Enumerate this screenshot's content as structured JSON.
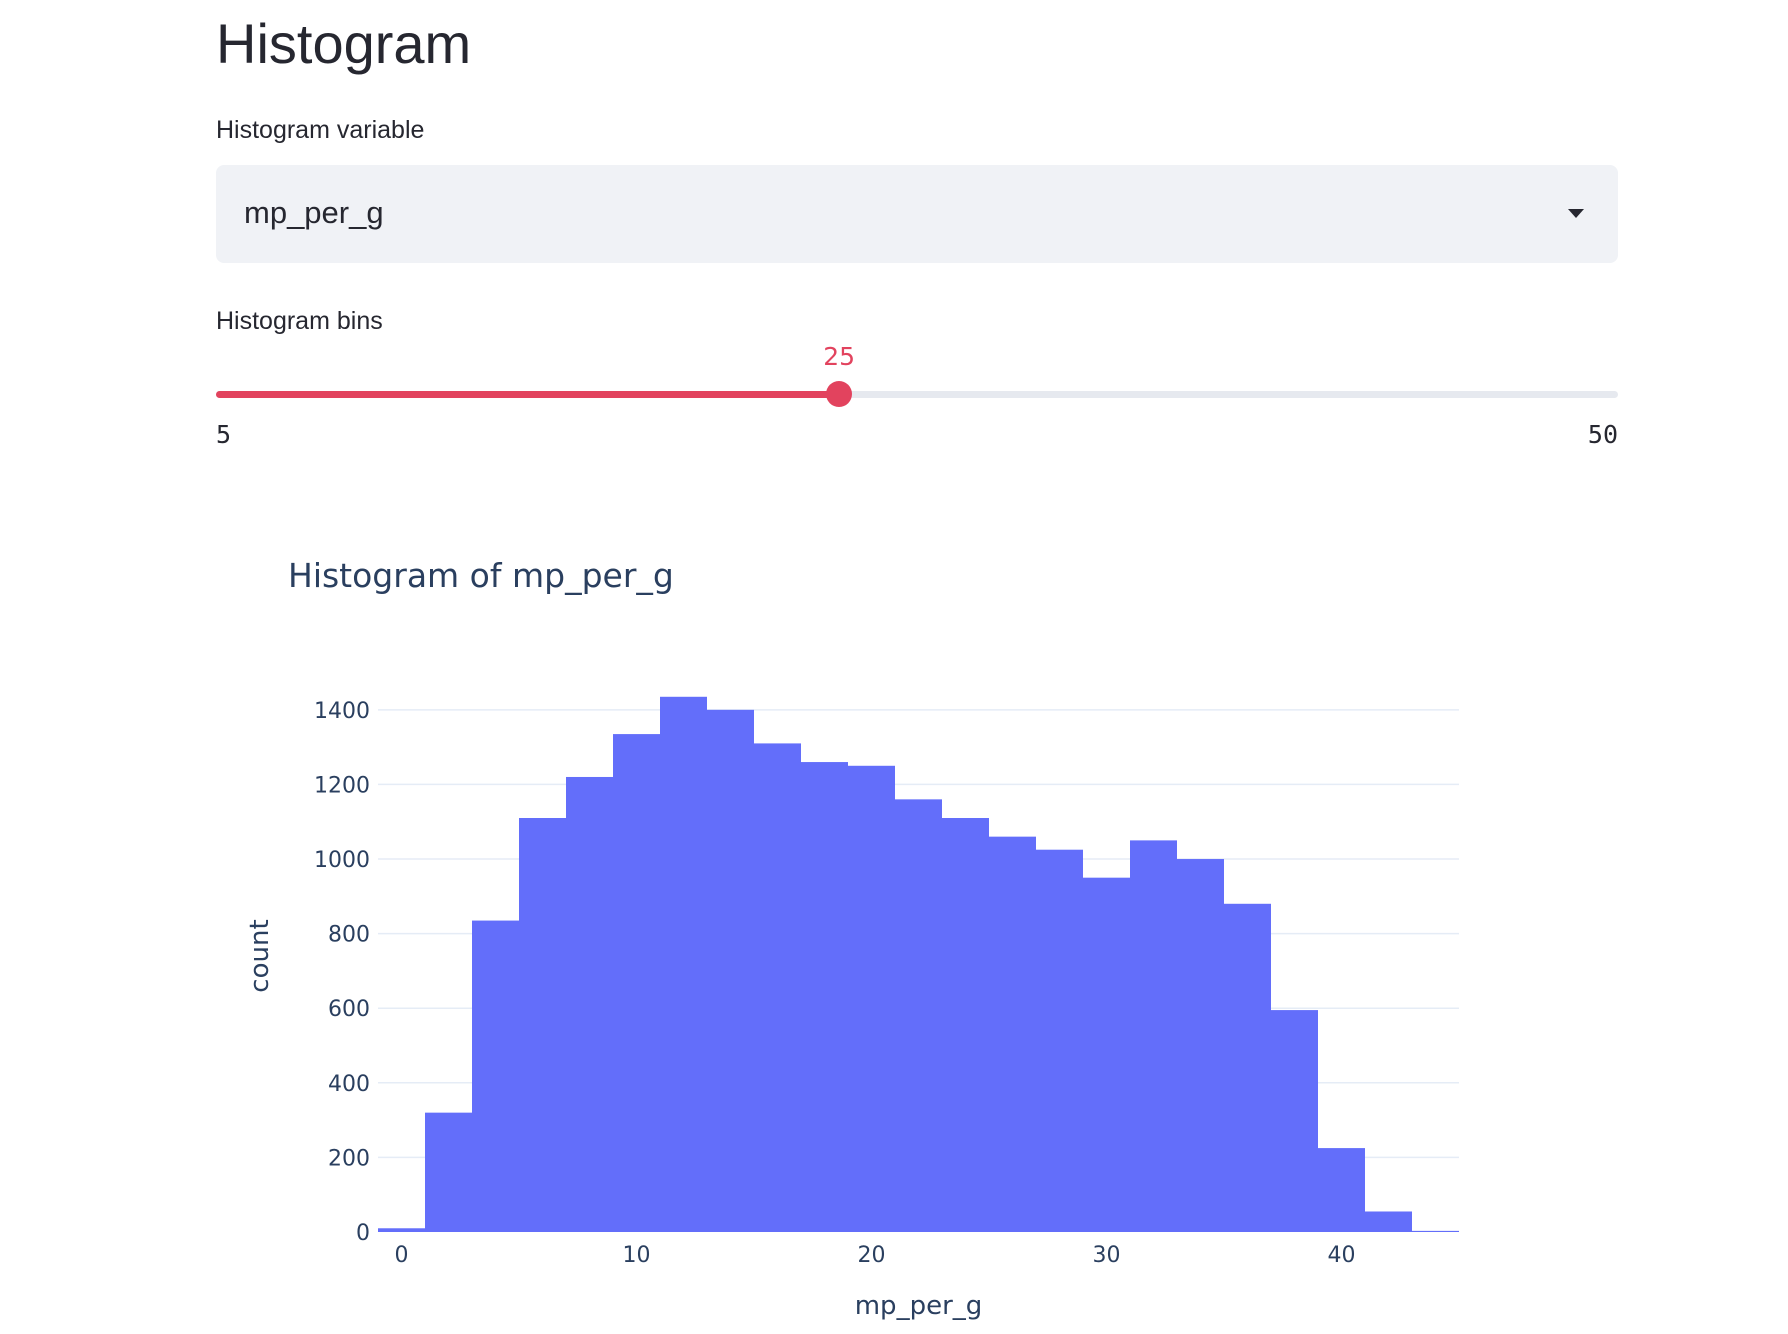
{
  "page": {
    "title": "Histogram"
  },
  "variable_select": {
    "label": "Histogram variable",
    "value": "mp_per_g"
  },
  "bins_slider": {
    "label": "Histogram bins",
    "value": 25,
    "value_text": "25",
    "min": 5,
    "min_text": "5",
    "max": 50,
    "max_text": "50",
    "accent_color": "#e2435e",
    "track_color": "#e6e9ef"
  },
  "chart_data": {
    "type": "bar",
    "title": "Histogram of mp_per_g",
    "xlabel": "mp_per_g",
    "ylabel": "count",
    "bar_color": "#636efa",
    "grid": true,
    "xlim": [
      -1,
      45
    ],
    "ylim": [
      0,
      1480
    ],
    "x_ticks": [
      0,
      10,
      20,
      30,
      40
    ],
    "y_ticks": [
      0,
      200,
      400,
      600,
      800,
      1000,
      1200,
      1400
    ],
    "bins": [
      {
        "x0": -1,
        "x1": 1,
        "count": 10
      },
      {
        "x0": 1,
        "x1": 3,
        "count": 320
      },
      {
        "x0": 3,
        "x1": 5,
        "count": 835
      },
      {
        "x0": 5,
        "x1": 7,
        "count": 1110
      },
      {
        "x0": 7,
        "x1": 9,
        "count": 1220
      },
      {
        "x0": 9,
        "x1": 11,
        "count": 1335
      },
      {
        "x0": 11,
        "x1": 13,
        "count": 1435
      },
      {
        "x0": 13,
        "x1": 15,
        "count": 1400
      },
      {
        "x0": 15,
        "x1": 17,
        "count": 1310
      },
      {
        "x0": 17,
        "x1": 19,
        "count": 1260
      },
      {
        "x0": 19,
        "x1": 21,
        "count": 1250
      },
      {
        "x0": 21,
        "x1": 23,
        "count": 1160
      },
      {
        "x0": 23,
        "x1": 25,
        "count": 1110
      },
      {
        "x0": 25,
        "x1": 27,
        "count": 1060
      },
      {
        "x0": 27,
        "x1": 29,
        "count": 1025
      },
      {
        "x0": 29,
        "x1": 31,
        "count": 950
      },
      {
        "x0": 31,
        "x1": 33,
        "count": 1050
      },
      {
        "x0": 33,
        "x1": 35,
        "count": 1000
      },
      {
        "x0": 35,
        "x1": 37,
        "count": 880
      },
      {
        "x0": 37,
        "x1": 39,
        "count": 595
      },
      {
        "x0": 39,
        "x1": 41,
        "count": 225
      },
      {
        "x0": 41,
        "x1": 43,
        "count": 55
      },
      {
        "x0": 43,
        "x1": 45,
        "count": 3
      }
    ]
  }
}
